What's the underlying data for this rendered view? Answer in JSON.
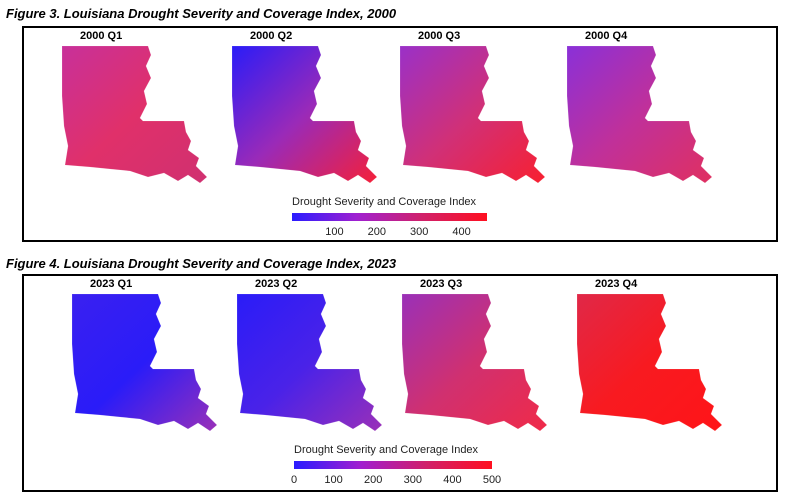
{
  "figures": [
    {
      "title": "Figure 3.  Louisiana Drought Severity and Coverage Index, 2000",
      "maps": [
        {
          "label": "2000 Q1",
          "colors": [
            "#c8309a",
            "#e0306a",
            "#d03070"
          ]
        },
        {
          "label": "2000 Q2",
          "colors": [
            "#2a1cf8",
            "#9a2ab8",
            "#f52038"
          ]
        },
        {
          "label": "2000 Q3",
          "colors": [
            "#9a30c8",
            "#d03078",
            "#f82030"
          ]
        },
        {
          "label": "2000 Q4",
          "colors": [
            "#8a30d8",
            "#c0309a",
            "#e03060"
          ]
        }
      ],
      "legend": {
        "title": "Drought Severity and Coverage Index",
        "ticks": [
          "100",
          "200",
          "300",
          "400"
        ],
        "range": [
          0,
          460
        ]
      }
    },
    {
      "title": "Figure 4.  Louisiana Drought Severity and Coverage Index, 2023",
      "maps": [
        {
          "label": "2023 Q1",
          "colors": [
            "#3a20f0",
            "#2a1cf8",
            "#9a30b8"
          ]
        },
        {
          "label": "2023 Q2",
          "colors": [
            "#2a1cf8",
            "#4a22e8",
            "#9a30b8"
          ]
        },
        {
          "label": "2023 Q3",
          "colors": [
            "#9a30b8",
            "#d03070",
            "#f02a48"
          ]
        },
        {
          "label": "2023 Q4",
          "colors": [
            "#e02848",
            "#f81a20",
            "#ff1418"
          ]
        }
      ],
      "legend": {
        "title": "Drought Severity and Coverage Index",
        "ticks": [
          "0",
          "100",
          "200",
          "300",
          "400",
          "500"
        ],
        "range": [
          0,
          500
        ]
      }
    }
  ]
}
